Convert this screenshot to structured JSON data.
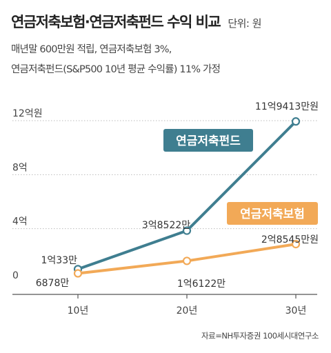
{
  "header": {
    "title": "연금저축보험·연금저축펀드 수익 비교",
    "unit": "단위: 원",
    "subtitle_lines": [
      "매년말 600만원 적립, 연금저축보험 3%,",
      "연금저축펀드(S&P500 10년 평균 수익률) 11% 가정"
    ]
  },
  "source": "자료=NH투자증권 100세시대연구소",
  "colors": {
    "fund": "#3f7e90",
    "insurance": "#f2a957",
    "axis": "#555555",
    "grid": "#bbbbbb"
  },
  "chart_data": {
    "type": "line",
    "categories": [
      "10년",
      "20년",
      "30년"
    ],
    "ylim": [
      0,
      1200000000
    ],
    "y_ticks": [
      {
        "value": 0,
        "label": "0"
      },
      {
        "value": 400000000,
        "label": "4억"
      },
      {
        "value": 800000000,
        "label": "8억"
      },
      {
        "value": 1200000000,
        "label": "12억원"
      }
    ],
    "grid": true,
    "series": [
      {
        "name": "연금저축펀드",
        "color": "#3f7e90",
        "values": [
          100330000,
          385220000,
          1194130000
        ],
        "labels": [
          "1억33만",
          "3억8522만",
          "11억9413만원"
        ]
      },
      {
        "name": "연금저축보험",
        "color": "#f2a957",
        "values": [
          68780000,
          161220000,
          285450000
        ],
        "labels": [
          "6878만",
          "1억6122만",
          "2억8545만원"
        ]
      }
    ]
  }
}
